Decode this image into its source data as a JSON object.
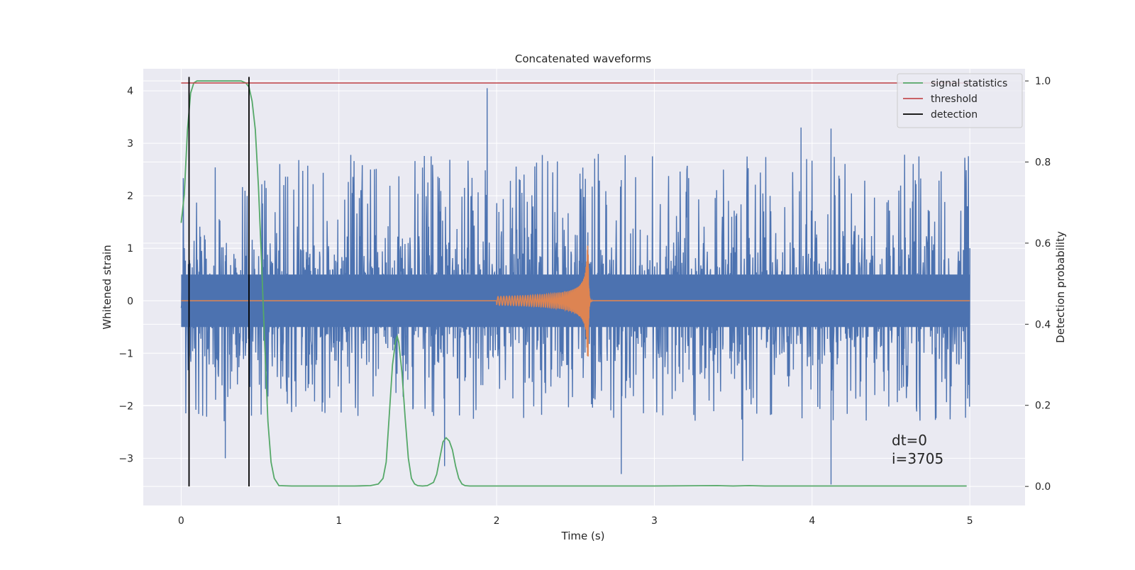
{
  "chart_data": {
    "type": "line",
    "title": "Concatenated waveforms",
    "xlabel": "Time (s)",
    "ylabel": "Whitened strain",
    "y2label": "Detection probability",
    "xlim": [
      -0.24,
      5.35
    ],
    "ylim": [
      -3.9,
      4.42
    ],
    "y2lim": [
      -0.047,
      1.03
    ],
    "xticks": [
      0,
      1,
      2,
      3,
      4,
      5
    ],
    "xtick_labels": [
      "0",
      "1",
      "2",
      "3",
      "4",
      "5"
    ],
    "yticks": [
      -3,
      -2,
      -1,
      0,
      1,
      2,
      3,
      4
    ],
    "ytick_labels": [
      "−3",
      "−2",
      "−1",
      "0",
      "1",
      "2",
      "3",
      "4"
    ],
    "y2ticks": [
      0.0,
      0.2,
      0.4,
      0.6,
      0.8,
      1.0
    ],
    "y2tick_labels": [
      "0.0",
      "0.2",
      "0.4",
      "0.6",
      "0.8",
      "1.0"
    ],
    "grid": true,
    "legend_position": "top-right",
    "colors": {
      "strain": "#4c72b0",
      "waveform": "#dd8452",
      "signal_statistics": "#55a868",
      "threshold": "#c44e52",
      "detection": "#000000",
      "plot_background": "#eaeaf2",
      "grid": "#ffffff"
    },
    "series": [
      {
        "name": "signal statistics",
        "axis": "right",
        "x": [
          0.0,
          0.02,
          0.04,
          0.06,
          0.08,
          0.1,
          0.15,
          0.2,
          0.25,
          0.3,
          0.35,
          0.38,
          0.41,
          0.43,
          0.45,
          0.47,
          0.49,
          0.51,
          0.53,
          0.55,
          0.57,
          0.59,
          0.62,
          0.7,
          0.8,
          0.9,
          1.0,
          1.1,
          1.2,
          1.25,
          1.28,
          1.3,
          1.32,
          1.34,
          1.36,
          1.37,
          1.38,
          1.4,
          1.42,
          1.44,
          1.46,
          1.48,
          1.5,
          1.53,
          1.56,
          1.6,
          1.62,
          1.64,
          1.66,
          1.68,
          1.7,
          1.72,
          1.74,
          1.76,
          1.78,
          1.8,
          1.83,
          1.9,
          2.0,
          2.5,
          3.0,
          3.4,
          3.5,
          3.6,
          3.7,
          4.0,
          4.5,
          4.98
        ],
        "values": [
          0.65,
          0.72,
          0.88,
          0.97,
          0.995,
          1.0,
          1.0,
          1.0,
          1.0,
          1.0,
          1.0,
          1.0,
          0.995,
          0.985,
          0.95,
          0.88,
          0.74,
          0.55,
          0.35,
          0.16,
          0.06,
          0.02,
          0.002,
          0.001,
          0.001,
          0.001,
          0.001,
          0.001,
          0.002,
          0.006,
          0.02,
          0.06,
          0.18,
          0.3,
          0.36,
          0.37,
          0.355,
          0.28,
          0.17,
          0.07,
          0.02,
          0.006,
          0.002,
          0.001,
          0.002,
          0.01,
          0.03,
          0.07,
          0.11,
          0.12,
          0.112,
          0.09,
          0.05,
          0.02,
          0.006,
          0.002,
          0.001,
          0.001,
          0.001,
          0.001,
          0.001,
          0.002,
          0.001,
          0.002,
          0.001,
          0.001,
          0.001,
          0.001
        ]
      },
      {
        "name": "threshold",
        "axis": "right",
        "x": [
          0.0,
          5.0
        ],
        "values": [
          0.995,
          0.995
        ]
      },
      {
        "name": "detection",
        "axis": "right",
        "type": "vlines",
        "x": [
          0.05,
          0.43
        ],
        "ymin": 0.0,
        "ymax": 1.01
      },
      {
        "axis": "left",
        "type": "noise",
        "x": [
          0.0,
          5.0
        ],
        "envelope": [
          -2.3,
          2.8
        ],
        "dense_band": [
          -0.5,
          0.5
        ],
        "spikes": [
          [
            1.94,
            4.05
          ],
          [
            3.93,
            3.3
          ],
          [
            4.12,
            3.28
          ],
          [
            2.79,
            2.3
          ],
          [
            0.28,
            -3.0
          ],
          [
            2.79,
            -3.3
          ],
          [
            3.56,
            -3.05
          ],
          [
            4.12,
            -3.5
          ],
          [
            1.67,
            -3.15
          ]
        ]
      },
      {
        "axis": "left",
        "type": "chirp",
        "t_start": 2.0,
        "t_merger": 2.58,
        "peak_amplitude": 1.05,
        "start_amplitude": 0.08
      }
    ]
  },
  "annotation": {
    "dt": "dt=0",
    "i": "i=3705"
  }
}
